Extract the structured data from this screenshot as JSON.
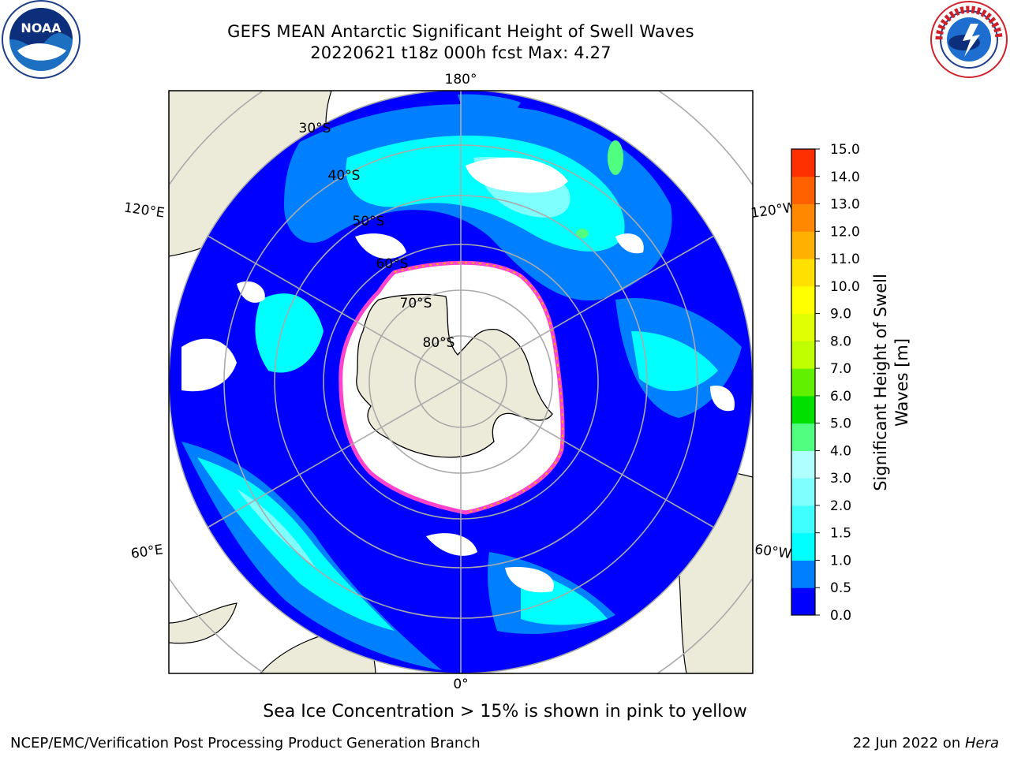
{
  "title": {
    "line1": "GEFS MEAN Antarctic Significant Height of Swell Waves",
    "line2": "20220621 t18z 000h fcst   Max: 4.27"
  },
  "logos": {
    "left": "noaa-logo",
    "right": "nws-logo"
  },
  "map": {
    "projection": "south-polar-stereographic",
    "longitude_labels": [
      "180°",
      "120°E",
      "120°W",
      "60°E",
      "60°W",
      "0°"
    ],
    "latitude_labels": [
      "30°S",
      "40°S",
      "50°S",
      "60°S",
      "70°S",
      "80°S"
    ],
    "colors": {
      "land": "#ecebd9",
      "ice": "#ffffff",
      "ice_edge": "#ff44cc",
      "grid": "#aaaaaa"
    }
  },
  "colorbar": {
    "label": "Significant Height of Swell Waves [m]",
    "label_line1": "Significant Height of Swell",
    "label_line2": "Waves [m]",
    "ticks": [
      "0.0",
      "0.5",
      "1.0",
      "1.5",
      "2.0",
      "3.0",
      "4.0",
      "5.0",
      "6.0",
      "7.0",
      "8.0",
      "9.0",
      "10.0",
      "11.0",
      "12.0",
      "13.0",
      "14.0",
      "15.0"
    ],
    "colors": [
      "#0000ff",
      "#0080ff",
      "#00ffff",
      "#40ffff",
      "#80ffff",
      "#b0ffff",
      "#50ff80",
      "#00e000",
      "#60f000",
      "#c0ff00",
      "#e0ff00",
      "#ffff00",
      "#ffe000",
      "#ffb000",
      "#ff8800",
      "#ff6000",
      "#ff3000",
      "#ff0000"
    ]
  },
  "caption": "Sea Ice Concentration > 15% is shown in pink to yellow",
  "footer": {
    "left": "NCEP/EMC/Verification Post Processing Product Generation Branch",
    "right_date": "22 Jun 2022 on ",
    "right_host": "Hera"
  }
}
